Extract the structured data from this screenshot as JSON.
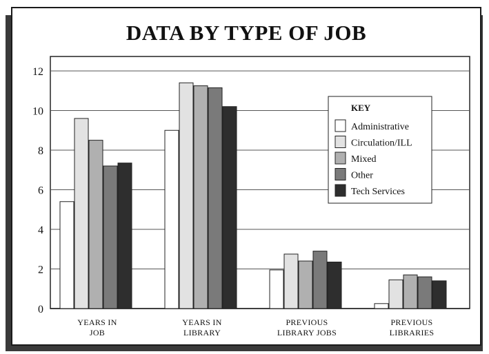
{
  "chart_data": {
    "type": "bar",
    "title": "DATA BY TYPE OF JOB",
    "xlabel": "",
    "ylabel": "",
    "ylim": [
      0,
      12
    ],
    "yticks": [
      0,
      2,
      4,
      6,
      8,
      10,
      12
    ],
    "grid": true,
    "legend_position": "right",
    "legend_title": "KEY",
    "categories": [
      [
        "YEARS IN",
        "JOB"
      ],
      [
        "YEARS IN",
        "LIBRARY"
      ],
      [
        "PREVIOUS",
        "LIBRARY JOBS"
      ],
      [
        "PREVIOUS",
        "LIBRARIES"
      ]
    ],
    "series": [
      {
        "name": "Administrative",
        "color": "#ffffff",
        "values": [
          5.4,
          9.0,
          1.95,
          0.25
        ]
      },
      {
        "name": "Circulation/ILL",
        "color": "#e2e2e2",
        "values": [
          9.6,
          11.4,
          2.75,
          1.45
        ]
      },
      {
        "name": "Mixed",
        "color": "#b0b0b0",
        "values": [
          8.5,
          11.25,
          2.4,
          1.7
        ]
      },
      {
        "name": "Other",
        "color": "#7a7a7a",
        "values": [
          7.2,
          11.15,
          2.9,
          1.6
        ]
      },
      {
        "name": "Tech Services",
        "color": "#2e2e2e",
        "values": [
          7.35,
          10.2,
          2.35,
          1.4
        ]
      }
    ]
  }
}
